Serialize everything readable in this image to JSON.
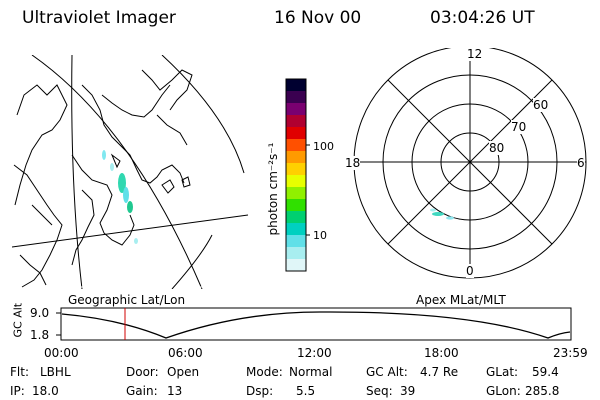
{
  "header": {
    "title": "Ultraviolet Imager",
    "date": "16 Nov 00",
    "time": "03:04:26 UT"
  },
  "colorbar": {
    "unit_label": "photon cm⁻²s⁻¹",
    "tick_100": "100",
    "tick_10": "10",
    "colors": [
      "#000030",
      "#3a0050",
      "#7a0070",
      "#b00030",
      "#e00000",
      "#ff5000",
      "#ff9a00",
      "#ffd000",
      "#e8ff00",
      "#90f000",
      "#30e000",
      "#00d070",
      "#00d0c0",
      "#60e0e8",
      "#a8eef0",
      "#e0f6f8"
    ]
  },
  "left_map": {
    "caption": "Geographic Lat/Lon"
  },
  "polar_plot": {
    "caption": "Apex MLat/MLT",
    "mlt_labels": {
      "top": "12",
      "left": "18",
      "right": "6",
      "bottom": "0"
    },
    "lat_labels": [
      "60",
      "70",
      "80"
    ]
  },
  "altitude_plot": {
    "ylabel": "GC Alt",
    "y_top": "9.0",
    "y_bottom": "1.8",
    "x_ticks": [
      "00:00",
      "06:00",
      "12:00",
      "18:00",
      "23:59"
    ]
  },
  "info": {
    "flt_label": "Flt:",
    "flt_value": "LBHL",
    "ip_label": "IP:",
    "ip_value": "18.0",
    "door_label": "Door:",
    "door_value": "Open",
    "gain_label": "Gain:",
    "gain_value": "13",
    "mode_label": "Mode:",
    "mode_value": "Normal",
    "dsp_label": "Dsp:",
    "dsp_value": "5.5",
    "gcalt_label": "GC Alt:",
    "gcalt_value": "4.7 Re",
    "seq_label": "Seq:",
    "seq_value": "39",
    "glat_label": "GLat:",
    "glat_value": "59.4",
    "glon_label": "GLon:",
    "glon_value": "285.8"
  }
}
